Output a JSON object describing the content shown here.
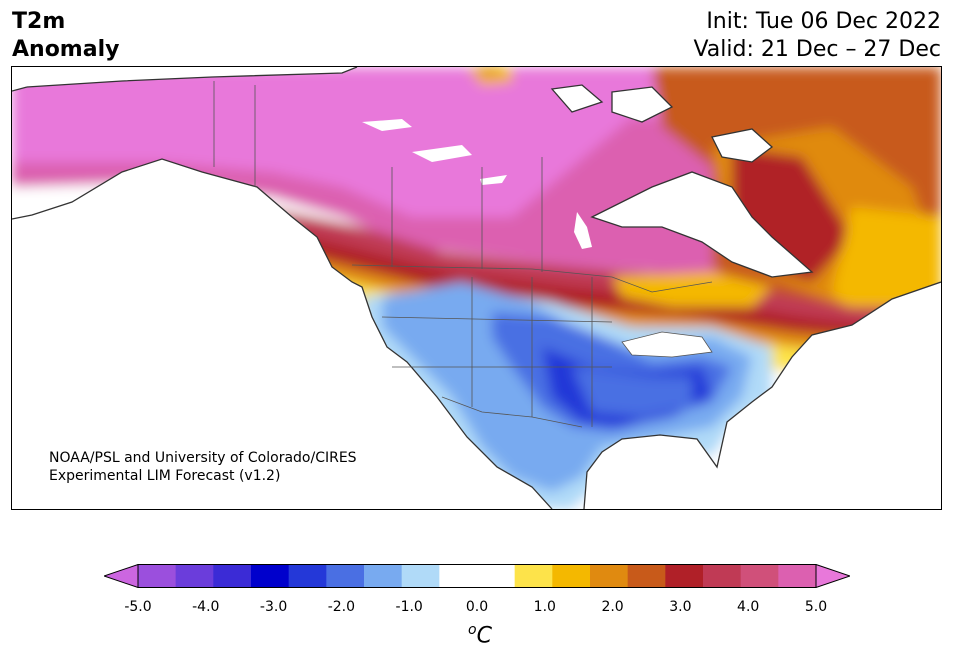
{
  "header": {
    "title_line1": "T2m",
    "title_line2": "Anomaly",
    "init": "Init: Tue 06 Dec 2022",
    "valid": "Valid: 21 Dec – 27 Dec"
  },
  "map": {
    "credit_line1": "NOAA/PSL and University of Colorado/CIRES",
    "credit_line2": "Experimental LIM Forecast (v1.2)",
    "region": "North America",
    "variable": "2 m temperature anomaly"
  },
  "colorbar": {
    "ticks": [
      "-5.0",
      "-4.0",
      "-3.0",
      "-2.0",
      "-1.0",
      "0.0",
      "1.0",
      "2.0",
      "3.0",
      "4.0",
      "5.0"
    ],
    "unit_sup": "o",
    "unit": "C",
    "colors": [
      "#9b4fdd",
      "#6b3ddb",
      "#3b2bd6",
      "#0000cc",
      "#2438d8",
      "#4a6fe3",
      "#78aaf0",
      "#b0daf8",
      "#ffffff",
      "#ffffff",
      "#fde34a",
      "#f4b800",
      "#e08a10",
      "#c85a1a",
      "#b02028",
      "#c03a55",
      "#d0507a",
      "#dc60b0"
    ],
    "under_color": "#cc66e0",
    "over_color": "#e878da"
  }
}
